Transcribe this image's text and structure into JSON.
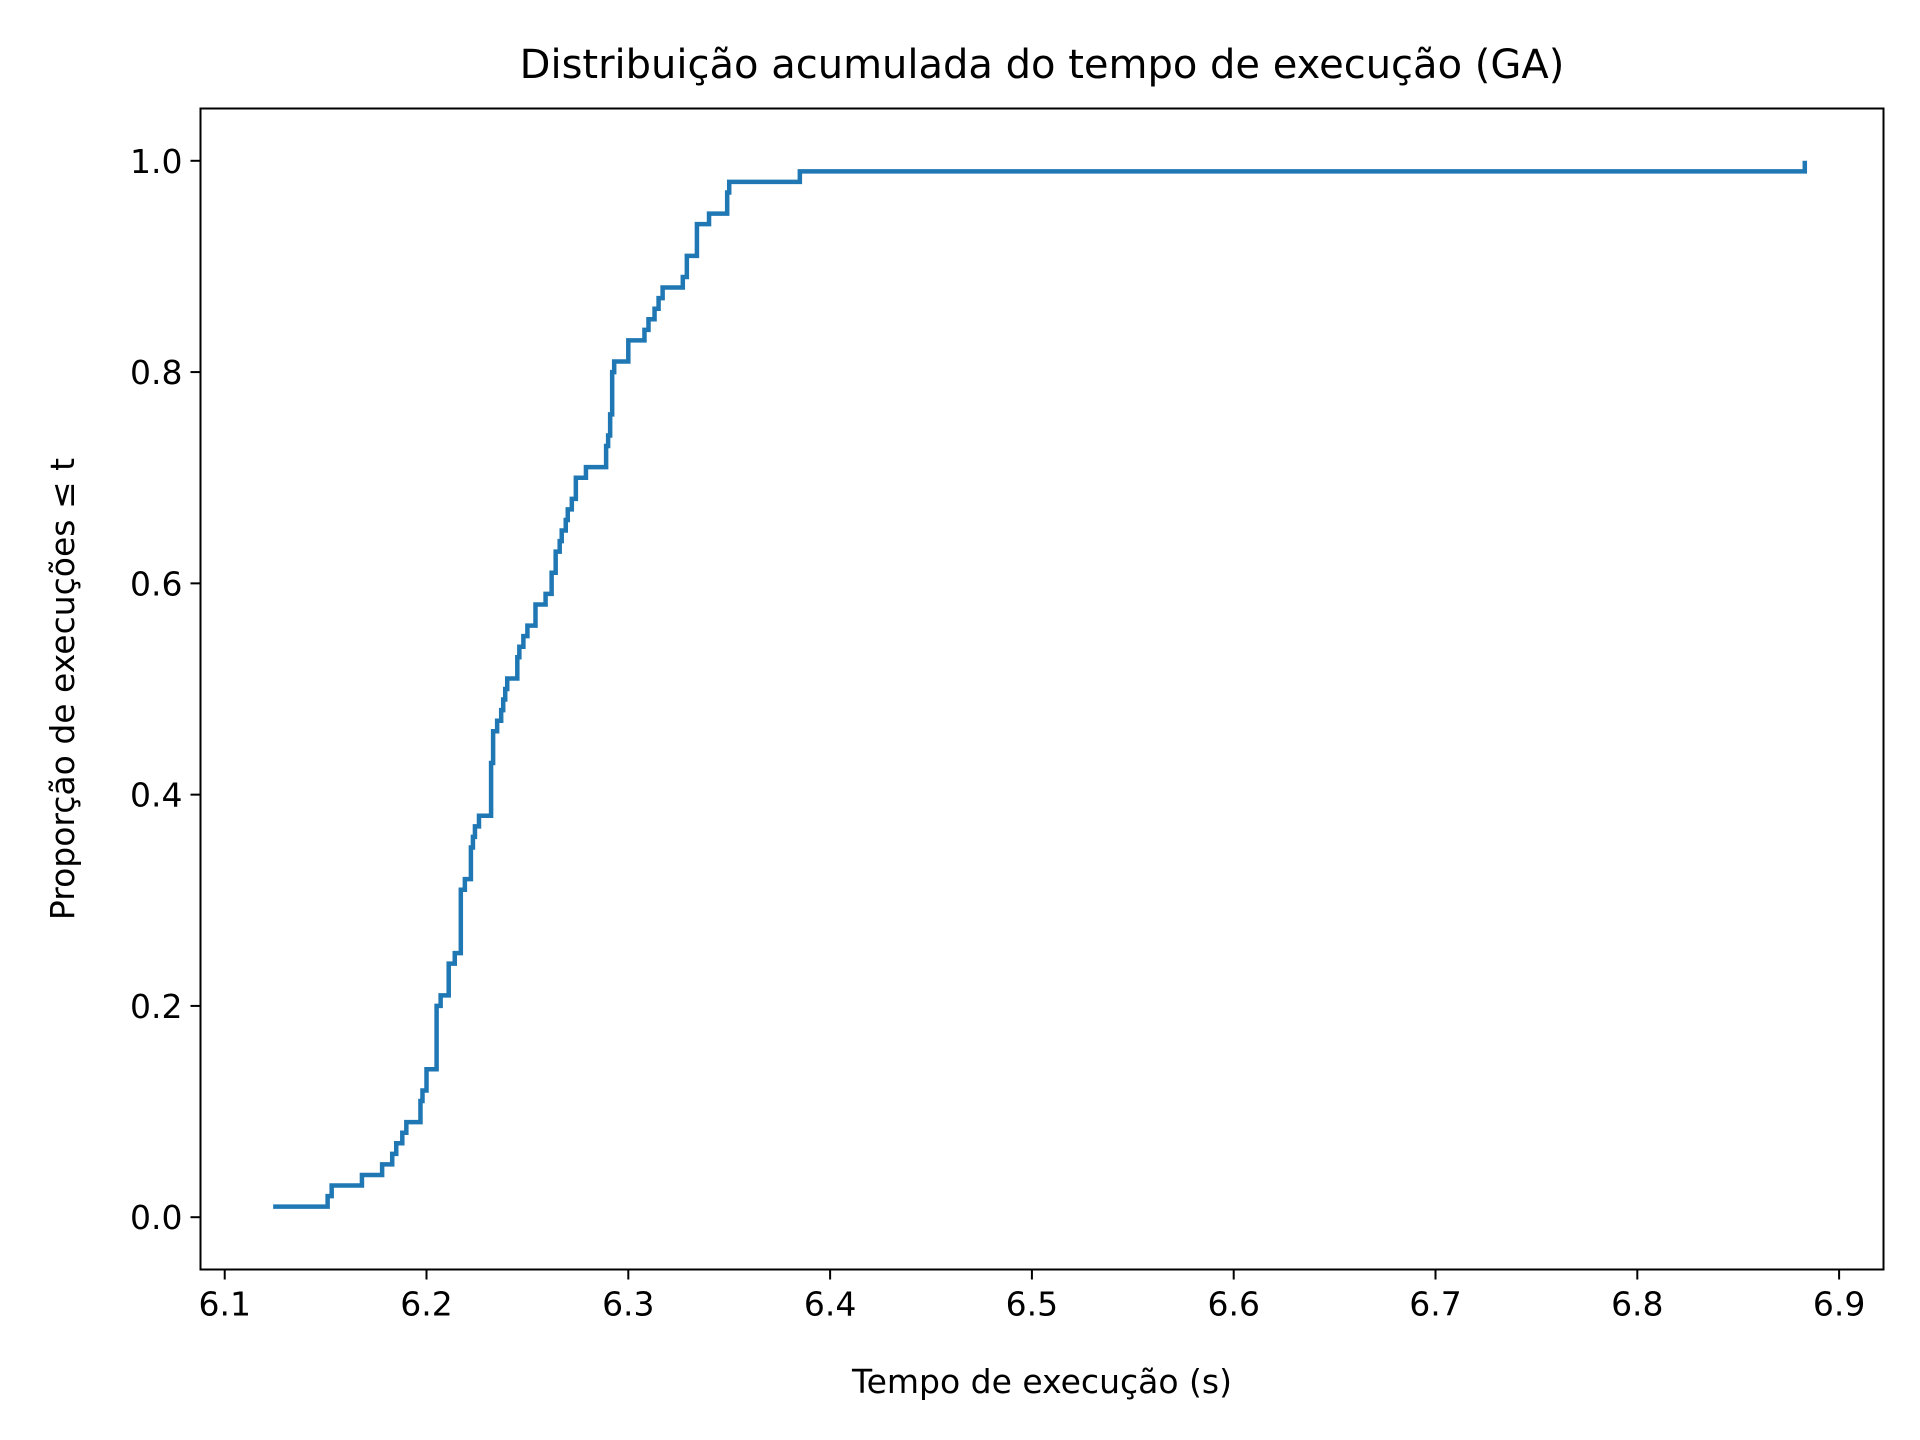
{
  "chart_data": {
    "type": "line",
    "drawstyle": "steps-post",
    "title": "Distribuição acumulada do tempo de execução (GA)",
    "xlabel": "Tempo de execução (s)",
    "ylabel": "Proporção de execuções ≤ t",
    "xlim": [
      6.088,
      6.922
    ],
    "ylim": [
      -0.0495,
      1.0495
    ],
    "xticks": [
      6.1,
      6.2,
      6.3,
      6.4,
      6.5,
      6.6,
      6.7,
      6.8,
      6.9
    ],
    "xtick_labels": [
      "6.1",
      "6.2",
      "6.3",
      "6.4",
      "6.5",
      "6.6",
      "6.7",
      "6.8",
      "6.9"
    ],
    "yticks": [
      0.0,
      0.2,
      0.4,
      0.6,
      0.8,
      1.0
    ],
    "ytick_labels": [
      "0.0",
      "0.2",
      "0.4",
      "0.6",
      "0.8",
      "1.0"
    ],
    "grid": false,
    "series": [
      {
        "color": "#1f77b4",
        "x": [
          6.124,
          6.151,
          6.153,
          6.168,
          6.178,
          6.183,
          6.185,
          6.188,
          6.19,
          6.197,
          6.198,
          6.2,
          6.205,
          6.207,
          6.211,
          6.214,
          6.217,
          6.219,
          6.222,
          6.223,
          6.224,
          6.226,
          6.232,
          6.233,
          6.235,
          6.237,
          6.238,
          6.239,
          6.24,
          6.245,
          6.246,
          6.248,
          6.25,
          6.254,
          6.259,
          6.262,
          6.264,
          6.266,
          6.267,
          6.269,
          6.27,
          6.272,
          6.274,
          6.279,
          6.289,
          6.29,
          6.291,
          6.292,
          6.293,
          6.3,
          6.308,
          6.31,
          6.313,
          6.315,
          6.317,
          6.327,
          6.329,
          6.334,
          6.34,
          6.349,
          6.35,
          6.385,
          6.883
        ],
        "values": [
          0.01,
          0.02,
          0.03,
          0.04,
          0.05,
          0.06,
          0.07,
          0.08,
          0.09,
          0.11,
          0.12,
          0.14,
          0.2,
          0.21,
          0.24,
          0.25,
          0.31,
          0.32,
          0.35,
          0.36,
          0.37,
          0.38,
          0.43,
          0.46,
          0.47,
          0.48,
          0.49,
          0.5,
          0.51,
          0.53,
          0.54,
          0.55,
          0.56,
          0.58,
          0.59,
          0.61,
          0.63,
          0.64,
          0.65,
          0.66,
          0.67,
          0.68,
          0.7,
          0.71,
          0.73,
          0.74,
          0.76,
          0.8,
          0.81,
          0.83,
          0.84,
          0.85,
          0.86,
          0.87,
          0.88,
          0.89,
          0.91,
          0.94,
          0.95,
          0.97,
          0.98,
          0.99,
          1.0
        ]
      }
    ]
  }
}
